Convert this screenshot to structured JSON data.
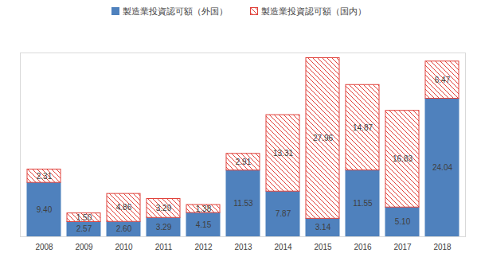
{
  "chart_data": {
    "type": "bar",
    "categories": [
      "2008",
      "2009",
      "2010",
      "2011",
      "2012",
      "2013",
      "2014",
      "2015",
      "2016",
      "2017",
      "2018"
    ],
    "series": [
      {
        "name": "製造業投資認可額（外国）",
        "color": "#4f81bd",
        "values": [
          9.4,
          2.57,
          2.6,
          3.29,
          4.15,
          11.53,
          7.87,
          3.14,
          11.55,
          5.1,
          24.04
        ],
        "value_labels": [
          "9.40",
          "2.57",
          "2.60",
          "3.29",
          "4.15",
          "11.53",
          "7.87",
          "3.14",
          "11.55",
          "5.10",
          "24.04"
        ]
      },
      {
        "name": "製造業投資認可額（国内）",
        "color": "#e0413a",
        "values": [
          2.31,
          1.5,
          4.86,
          3.29,
          1.38,
          2.91,
          13.31,
          27.96,
          14.87,
          16.83,
          6.47
        ],
        "value_labels": [
          "2.31",
          "1.50",
          "4.86",
          "3.29",
          "1.38",
          "2.91",
          "13.31",
          "27.96",
          "14.87",
          "16.83",
          "6.47"
        ]
      }
    ],
    "stacked": true,
    "data_labels": true,
    "legend": "top",
    "tick_labels": "x",
    "grid": false,
    "ylim": [
      0,
      32
    ]
  }
}
